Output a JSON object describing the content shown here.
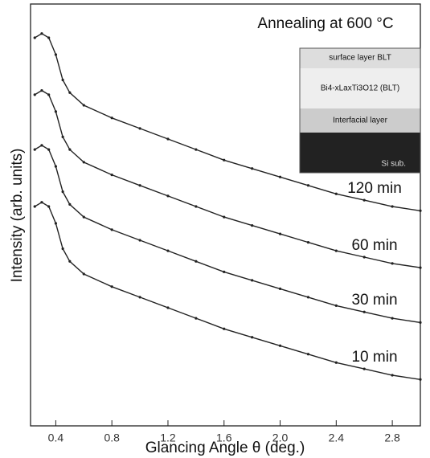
{
  "chart_data": {
    "type": "line",
    "title": "Annealing at 600 °C",
    "x_label": "Glancing Angle θ  (deg.)",
    "y_label": "Intensity (arb. units)",
    "x": [
      0.25,
      0.3,
      0.35,
      0.4,
      0.45,
      0.5,
      0.6,
      0.8,
      1.0,
      1.2,
      1.4,
      1.6,
      1.8,
      2.0,
      2.2,
      2.4,
      2.6,
      2.8,
      3.0
    ],
    "series": [
      {
        "name": "120 min",
        "color": "#222222",
        "values": [
          92,
          93,
          92,
          88,
          82,
          79,
          76,
          73,
          70.5,
          68,
          65.5,
          63,
          61,
          59,
          57,
          55,
          53.5,
          52,
          51
        ]
      },
      {
        "name": "60 min",
        "color": "#222222",
        "values": [
          78.5,
          79.5,
          78.5,
          74.5,
          68.5,
          65.5,
          62.5,
          59.5,
          57,
          54.5,
          52,
          49.5,
          47.5,
          45.5,
          43.5,
          41.5,
          40,
          38.5,
          37.5
        ]
      },
      {
        "name": "30 min",
        "color": "#222222",
        "values": [
          65.5,
          66.5,
          65.5,
          61.5,
          55.5,
          52.5,
          49.5,
          46.5,
          44,
          41.5,
          39,
          36.5,
          34.5,
          32.5,
          30.5,
          28.5,
          27,
          25.5,
          24.5
        ]
      },
      {
        "name": "10 min",
        "color": "#222222",
        "values": [
          52,
          53,
          52,
          48,
          42,
          39,
          36,
          33,
          30.5,
          28,
          25.5,
          23,
          21,
          19,
          17,
          15,
          13.5,
          12,
          11
        ]
      }
    ],
    "xlim": [
      0.22,
      3.0
    ],
    "xticks": [
      0.4,
      0.8,
      1.2,
      1.6,
      {
        "value": 2,
        "label": "2.0"
      },
      2.4,
      2.8
    ],
    "ylim": [
      0,
      100
    ],
    "inset": {
      "layers": [
        "surface layer BLT",
        "Bi4-xLaxTi3O12 (BLT)",
        "Interfacial layer",
        "Si sub."
      ]
    }
  }
}
